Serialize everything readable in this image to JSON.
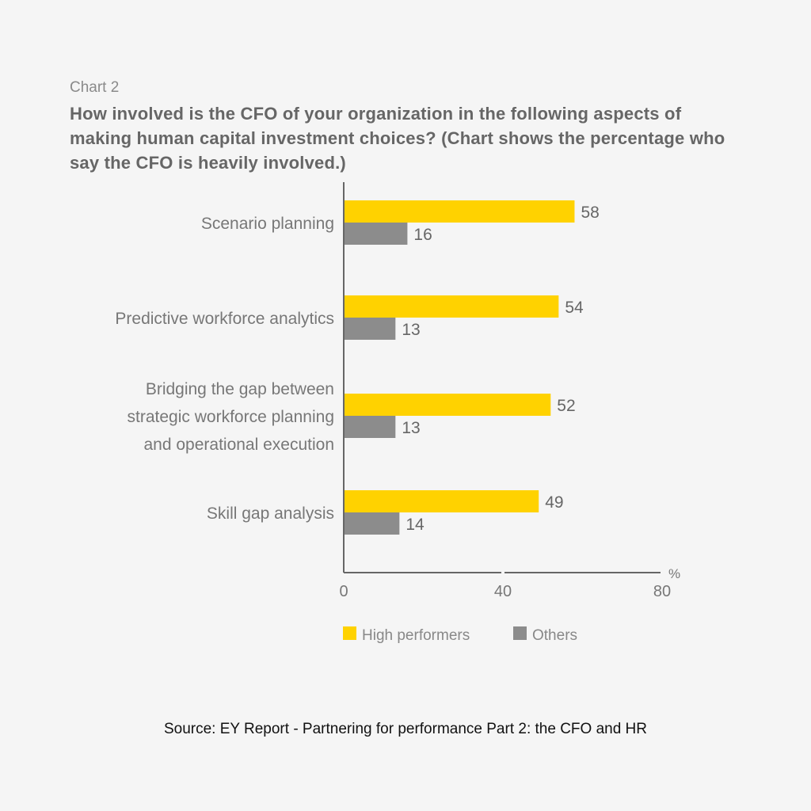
{
  "header": {
    "chart_label": "Chart 2",
    "title": "How involved is the CFO of your organization in the following aspects of making human capital investment choices? (Chart shows the percentage who say the CFO is heavily involved.)"
  },
  "chart_data": {
    "type": "bar",
    "orientation": "horizontal",
    "categories": [
      [
        "Scenario planning"
      ],
      [
        "Predictive workforce analytics"
      ],
      [
        "Bridging the gap between",
        "strategic workforce planning",
        "and operational execution"
      ],
      [
        "Skill gap analysis"
      ]
    ],
    "series": [
      {
        "name": "High performers",
        "color": "#ffd200",
        "values": [
          58,
          54,
          52,
          49
        ]
      },
      {
        "name": "Others",
        "color": "#8c8c8c",
        "values": [
          16,
          13,
          13,
          14
        ]
      }
    ],
    "x_ticks": [
      "0",
      "40",
      "80"
    ],
    "x_unit": "%",
    "xlim": [
      0,
      80
    ],
    "grid": false,
    "legend_position": "bottom"
  },
  "footer": {
    "source": "Source: EY Report - Partnering for performance Part 2: the CFO and HR"
  }
}
